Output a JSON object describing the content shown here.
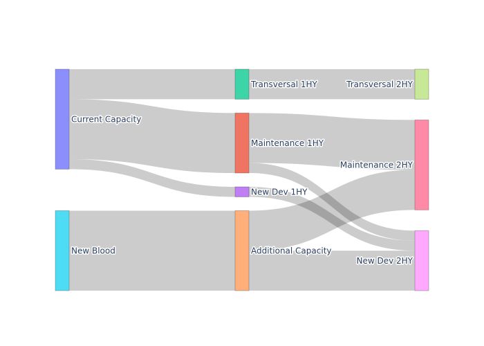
{
  "chart_data": {
    "type": "sankey",
    "nodes": [
      {
        "id": "current",
        "label": "Current Capacity",
        "color": "#8B8FFB",
        "column": 0
      },
      {
        "id": "newblood",
        "label": "New Blood",
        "color": "#4DDCF3",
        "column": 0
      },
      {
        "id": "trans1",
        "label": "Transversal 1HY",
        "color": "#3DD4A7",
        "column": 1
      },
      {
        "id": "maint1",
        "label": "Maintenance 1HY",
        "color": "#EF7462",
        "column": 1
      },
      {
        "id": "newdev1",
        "label": "New Dev 1HY",
        "color": "#BF7EF2",
        "column": 1
      },
      {
        "id": "addcap",
        "label": "Additional Capacity",
        "color": "#FFB07A",
        "column": 1
      },
      {
        "id": "trans2",
        "label": "Transversal 2HY",
        "color": "#C7E997",
        "column": 2
      },
      {
        "id": "maint2",
        "label": "Maintenance 2HY",
        "color": "#FF8AA8",
        "column": 2
      },
      {
        "id": "newdev2",
        "label": "New Dev 2HY",
        "color": "#FEA9FE",
        "column": 2
      }
    ],
    "links": [
      {
        "source": "current",
        "target": "trans1",
        "value": 3
      },
      {
        "source": "current",
        "target": "maint1",
        "value": 6
      },
      {
        "source": "current",
        "target": "newdev1",
        "value": 1
      },
      {
        "source": "newblood",
        "target": "addcap",
        "value": 8
      },
      {
        "source": "trans1",
        "target": "trans2",
        "value": 3
      },
      {
        "source": "maint1",
        "target": "maint2",
        "value": 5
      },
      {
        "source": "maint1",
        "target": "newdev2",
        "value": 1
      },
      {
        "source": "newdev1",
        "target": "newdev2",
        "value": 1
      },
      {
        "source": "addcap",
        "target": "maint2",
        "value": 4
      },
      {
        "source": "addcap",
        "target": "newdev2",
        "value": 4
      }
    ]
  }
}
